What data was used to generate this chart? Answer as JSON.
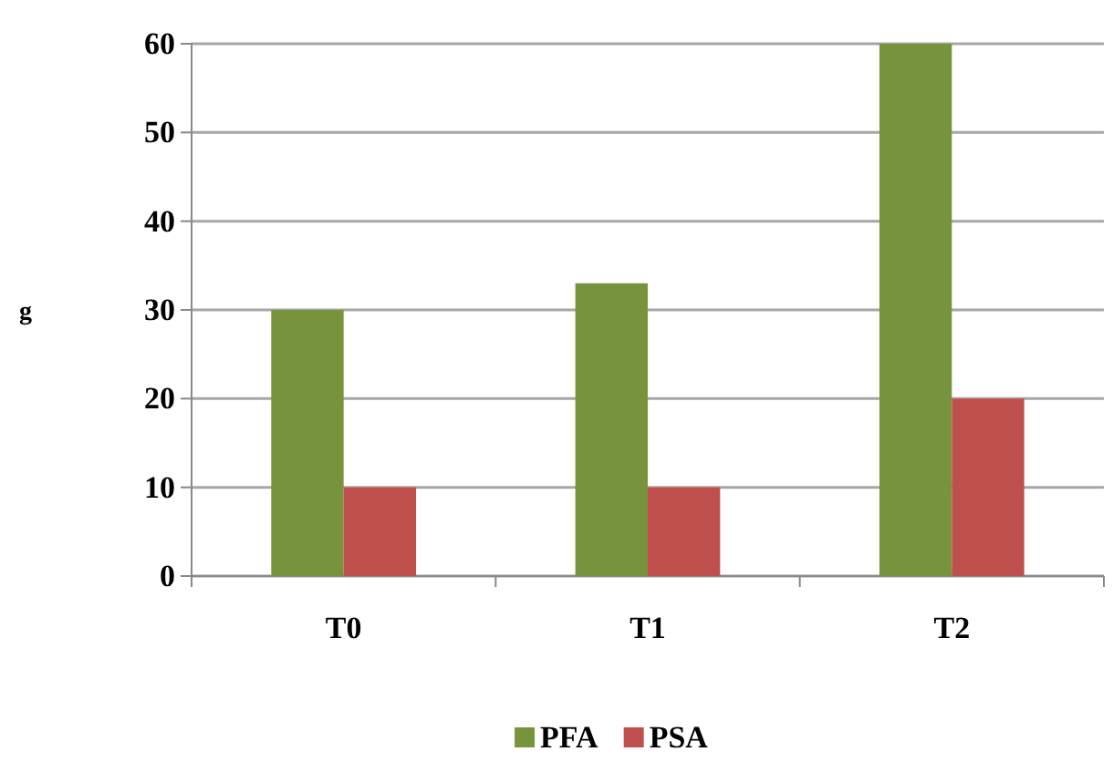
{
  "chart_data": {
    "type": "bar",
    "ylabel": "g",
    "categories": [
      "T0",
      "T1",
      "T2"
    ],
    "series": [
      {
        "name": "PFA",
        "color": "#77933c",
        "values": [
          30,
          33,
          60
        ]
      },
      {
        "name": "PSA",
        "color": "#c0504d",
        "values": [
          10,
          10,
          20
        ]
      }
    ],
    "ylim": [
      0,
      60
    ],
    "yticks": [
      0,
      10,
      20,
      30,
      40,
      50,
      60
    ],
    "grid": "y",
    "legend": "bottom"
  }
}
